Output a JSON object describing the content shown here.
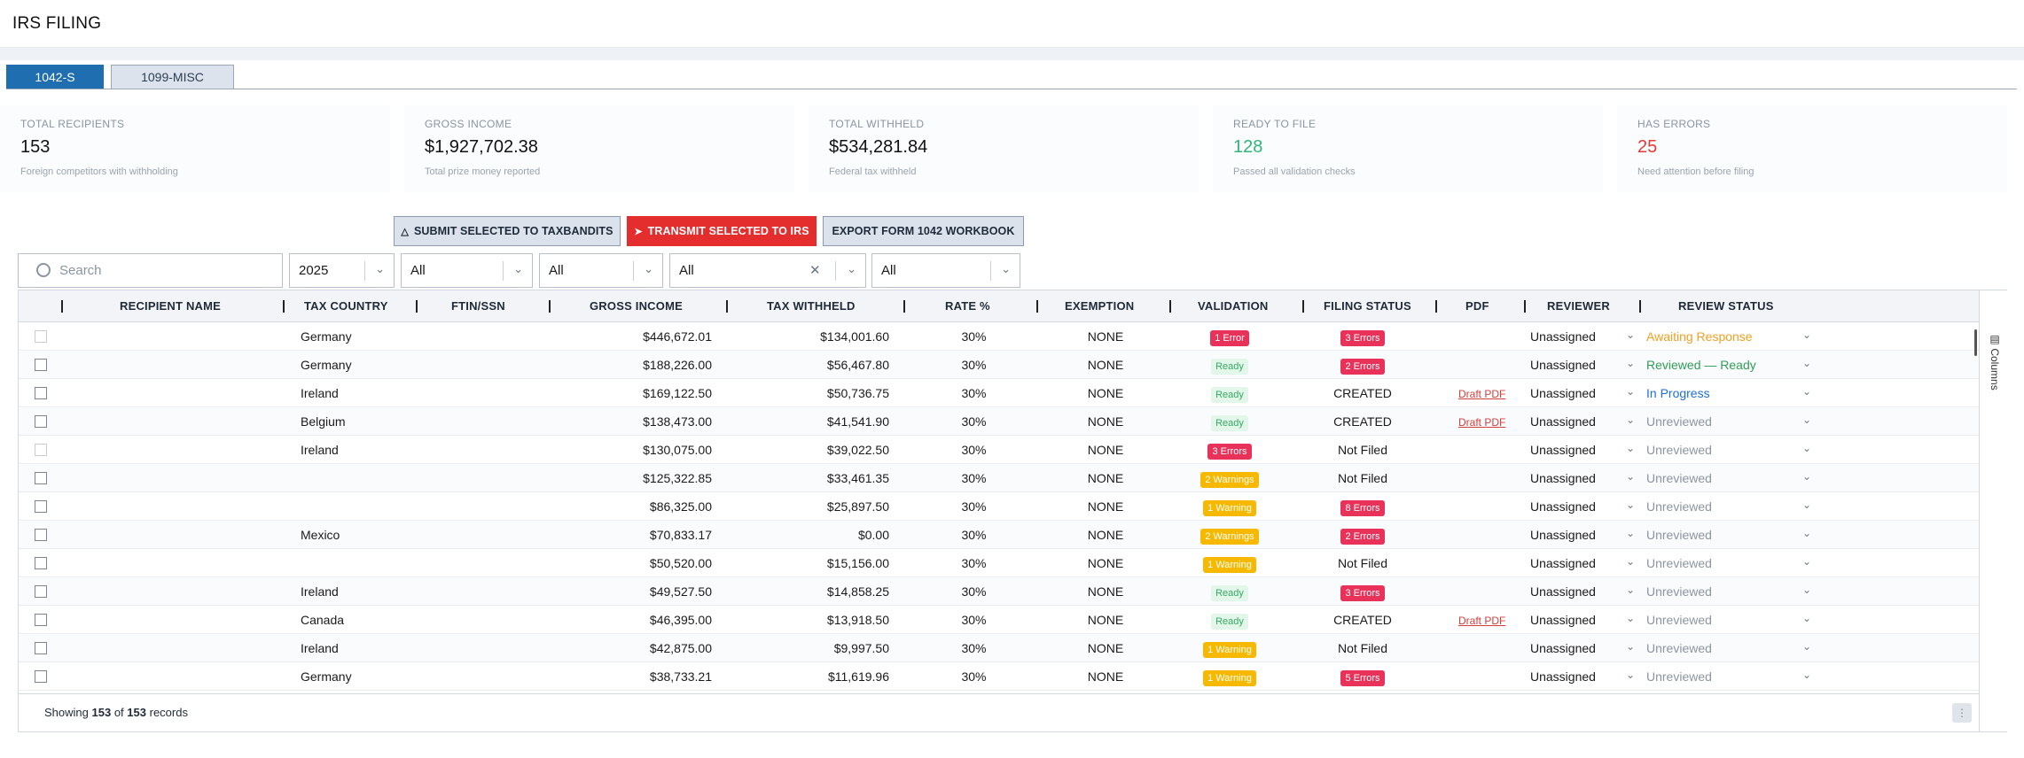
{
  "page_title": "IRS FILING",
  "tabs": [
    {
      "label": "1042-S",
      "active": true
    },
    {
      "label": "1099-MISC",
      "active": false
    }
  ],
  "stats": [
    {
      "label": "TOTAL RECIPIENTS",
      "value": "153",
      "sub": "Foreign competitors with withholding",
      "color": "#111111"
    },
    {
      "label": "GROSS INCOME",
      "value": "$1,927,702.38",
      "sub": "Total prize money reported",
      "color": "#111111"
    },
    {
      "label": "TOTAL WITHHELD",
      "value": "$534,281.84",
      "sub": "Federal tax withheld",
      "color": "#111111"
    },
    {
      "label": "READY TO FILE",
      "value": "128",
      "sub": "Passed all validation checks",
      "color": "#2fb57a"
    },
    {
      "label": "HAS ERRORS",
      "value": "25",
      "sub": "Need attention before filing",
      "color": "#e53935"
    }
  ],
  "actions": {
    "submit_label": "SUBMIT SELECTED TO TAXBANDITS",
    "transmit_label": "TRANSMIT SELECTED TO IRS",
    "export_label": "EXPORT FORM 1042 WORKBOOK"
  },
  "filters": {
    "search_placeholder": "Search",
    "year": "2025",
    "filter2": "All",
    "filter3": "All",
    "filter4": "All",
    "filter5": "All"
  },
  "columns": {
    "recipient_name": "RECIPIENT NAME",
    "tax_country": "TAX COUNTRY",
    "ftin_ssn": "FTIN/SSN",
    "gross_income": "GROSS INCOME",
    "tax_withheld": "TAX WITHHELD",
    "rate": "RATE %",
    "exemption": "EXEMPTION",
    "validation": "VALIDATION",
    "filing_status": "FILING STATUS",
    "pdf": "PDF",
    "reviewer": "REVIEWER",
    "review_status": "REVIEW STATUS"
  },
  "side_panel_label": "Columns",
  "rows": [
    {
      "country": "Germany",
      "gross": "$446,672.01",
      "withheld": "$134,001.60",
      "rate": "30%",
      "exemption": "NONE",
      "validation": {
        "text": "1 Error",
        "kind": "red"
      },
      "filing": {
        "text": "3 Errors",
        "kind": "red"
      },
      "pdf": "",
      "reviewer": "Unassigned",
      "review": {
        "text": "Awaiting Response",
        "kind": "orange"
      },
      "checkbox_dim": true
    },
    {
      "country": "Germany",
      "gross": "$188,226.00",
      "withheld": "$56,467.80",
      "rate": "30%",
      "exemption": "NONE",
      "validation": {
        "text": "Ready",
        "kind": "green"
      },
      "filing": {
        "text": "2 Errors",
        "kind": "red"
      },
      "pdf": "",
      "reviewer": "Unassigned",
      "review": {
        "text": "Reviewed — Ready",
        "kind": "green"
      },
      "checkbox_dim": false
    },
    {
      "country": "Ireland",
      "gross": "$169,122.50",
      "withheld": "$50,736.75",
      "rate": "30%",
      "exemption": "NONE",
      "validation": {
        "text": "Ready",
        "kind": "green"
      },
      "filing": {
        "text": "CREATED",
        "kind": "text"
      },
      "pdf": "Draft PDF",
      "reviewer": "Unassigned",
      "review": {
        "text": "In Progress",
        "kind": "blue"
      },
      "checkbox_dim": false
    },
    {
      "country": "Belgium",
      "gross": "$138,473.00",
      "withheld": "$41,541.90",
      "rate": "30%",
      "exemption": "NONE",
      "validation": {
        "text": "Ready",
        "kind": "green"
      },
      "filing": {
        "text": "CREATED",
        "kind": "text"
      },
      "pdf": "Draft PDF",
      "reviewer": "Unassigned",
      "review": {
        "text": "Unreviewed",
        "kind": "gray"
      },
      "checkbox_dim": false
    },
    {
      "country": "Ireland",
      "gross": "$130,075.00",
      "withheld": "$39,022.50",
      "rate": "30%",
      "exemption": "NONE",
      "validation": {
        "text": "3 Errors",
        "kind": "red"
      },
      "filing": {
        "text": "Not Filed",
        "kind": "text"
      },
      "pdf": "",
      "reviewer": "Unassigned",
      "review": {
        "text": "Unreviewed",
        "kind": "gray"
      },
      "checkbox_dim": true
    },
    {
      "country": "",
      "gross": "$125,322.85",
      "withheld": "$33,461.35",
      "rate": "30%",
      "exemption": "NONE",
      "validation": {
        "text": "2 Warnings",
        "kind": "yellow"
      },
      "filing": {
        "text": "Not Filed",
        "kind": "text"
      },
      "pdf": "",
      "reviewer": "Unassigned",
      "review": {
        "text": "Unreviewed",
        "kind": "gray"
      },
      "checkbox_dim": false
    },
    {
      "country": "",
      "gross": "$86,325.00",
      "withheld": "$25,897.50",
      "rate": "30%",
      "exemption": "NONE",
      "validation": {
        "text": "1 Warning",
        "kind": "yellow"
      },
      "filing": {
        "text": "8 Errors",
        "kind": "red"
      },
      "pdf": "",
      "reviewer": "Unassigned",
      "review": {
        "text": "Unreviewed",
        "kind": "gray"
      },
      "checkbox_dim": false
    },
    {
      "country": "Mexico",
      "gross": "$70,833.17",
      "withheld": "$0.00",
      "rate": "30%",
      "exemption": "NONE",
      "validation": {
        "text": "2 Warnings",
        "kind": "yellow"
      },
      "filing": {
        "text": "2 Errors",
        "kind": "red"
      },
      "pdf": "",
      "reviewer": "Unassigned",
      "review": {
        "text": "Unreviewed",
        "kind": "gray"
      },
      "checkbox_dim": false
    },
    {
      "country": "",
      "gross": "$50,520.00",
      "withheld": "$15,156.00",
      "rate": "30%",
      "exemption": "NONE",
      "validation": {
        "text": "1 Warning",
        "kind": "yellow"
      },
      "filing": {
        "text": "Not Filed",
        "kind": "text"
      },
      "pdf": "",
      "reviewer": "Unassigned",
      "review": {
        "text": "Unreviewed",
        "kind": "gray"
      },
      "checkbox_dim": false
    },
    {
      "country": "Ireland",
      "gross": "$49,527.50",
      "withheld": "$14,858.25",
      "rate": "30%",
      "exemption": "NONE",
      "validation": {
        "text": "Ready",
        "kind": "green"
      },
      "filing": {
        "text": "3 Errors",
        "kind": "red"
      },
      "pdf": "",
      "reviewer": "Unassigned",
      "review": {
        "text": "Unreviewed",
        "kind": "gray"
      },
      "checkbox_dim": false
    },
    {
      "country": "Canada",
      "gross": "$46,395.00",
      "withheld": "$13,918.50",
      "rate": "30%",
      "exemption": "NONE",
      "validation": {
        "text": "Ready",
        "kind": "green"
      },
      "filing": {
        "text": "CREATED",
        "kind": "text"
      },
      "pdf": "Draft PDF",
      "reviewer": "Unassigned",
      "review": {
        "text": "Unreviewed",
        "kind": "gray"
      },
      "checkbox_dim": false
    },
    {
      "country": "Ireland",
      "gross": "$42,875.00",
      "withheld": "$9,997.50",
      "rate": "30%",
      "exemption": "NONE",
      "validation": {
        "text": "1 Warning",
        "kind": "yellow"
      },
      "filing": {
        "text": "Not Filed",
        "kind": "text"
      },
      "pdf": "",
      "reviewer": "Unassigned",
      "review": {
        "text": "Unreviewed",
        "kind": "gray"
      },
      "checkbox_dim": false
    },
    {
      "country": "Germany",
      "gross": "$38,733.21",
      "withheld": "$11,619.96",
      "rate": "30%",
      "exemption": "NONE",
      "validation": {
        "text": "1 Warning",
        "kind": "yellow"
      },
      "filing": {
        "text": "5 Errors",
        "kind": "red"
      },
      "pdf": "",
      "reviewer": "Unassigned",
      "review": {
        "text": "Unreviewed",
        "kind": "gray"
      },
      "checkbox_dim": false
    }
  ],
  "footer": {
    "prefix": "Showing",
    "shown": "153",
    "of": "of",
    "total": "153",
    "suffix": "records"
  }
}
